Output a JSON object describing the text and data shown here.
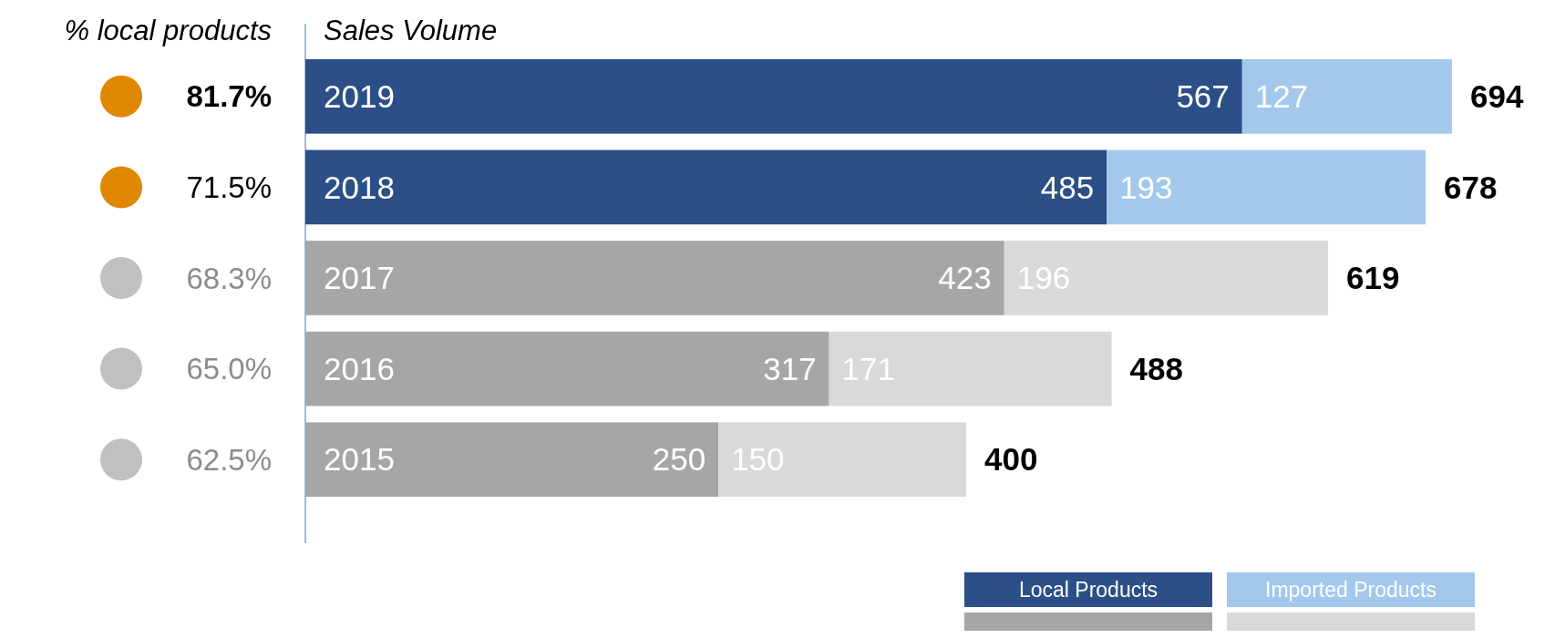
{
  "chart_data": {
    "type": "bar",
    "orientation": "horizontal",
    "stacked": true,
    "title": "Sales Volume",
    "categories": [
      "2019",
      "2018",
      "2017",
      "2016",
      "2015"
    ],
    "series": [
      {
        "name": "Local Products",
        "color": "#2b4f86",
        "colors": [
          "#2b4f86",
          "#2b4f86",
          "#a6a6a6",
          "#a6a6a6",
          "#a6a6a6"
        ],
        "values": [
          567,
          485,
          423,
          317,
          250
        ]
      },
      {
        "name": "Imported Products",
        "color": "#a3c8ec",
        "colors": [
          "#a3c8ec",
          "#a3c8ec",
          "#d9d9d9",
          "#d9d9d9",
          "#d9d9d9"
        ],
        "values": [
          127,
          193,
          196,
          171,
          150
        ]
      }
    ],
    "data_labels": true,
    "totals": [
      "694",
      "678",
      "619",
      "488",
      "400"
    ],
    "legend": "bottom right",
    "annotations": [
      "% local products",
      "81.7%",
      "71.5%",
      "68.3%",
      "65.0%",
      "62.5%"
    ]
  }
}
